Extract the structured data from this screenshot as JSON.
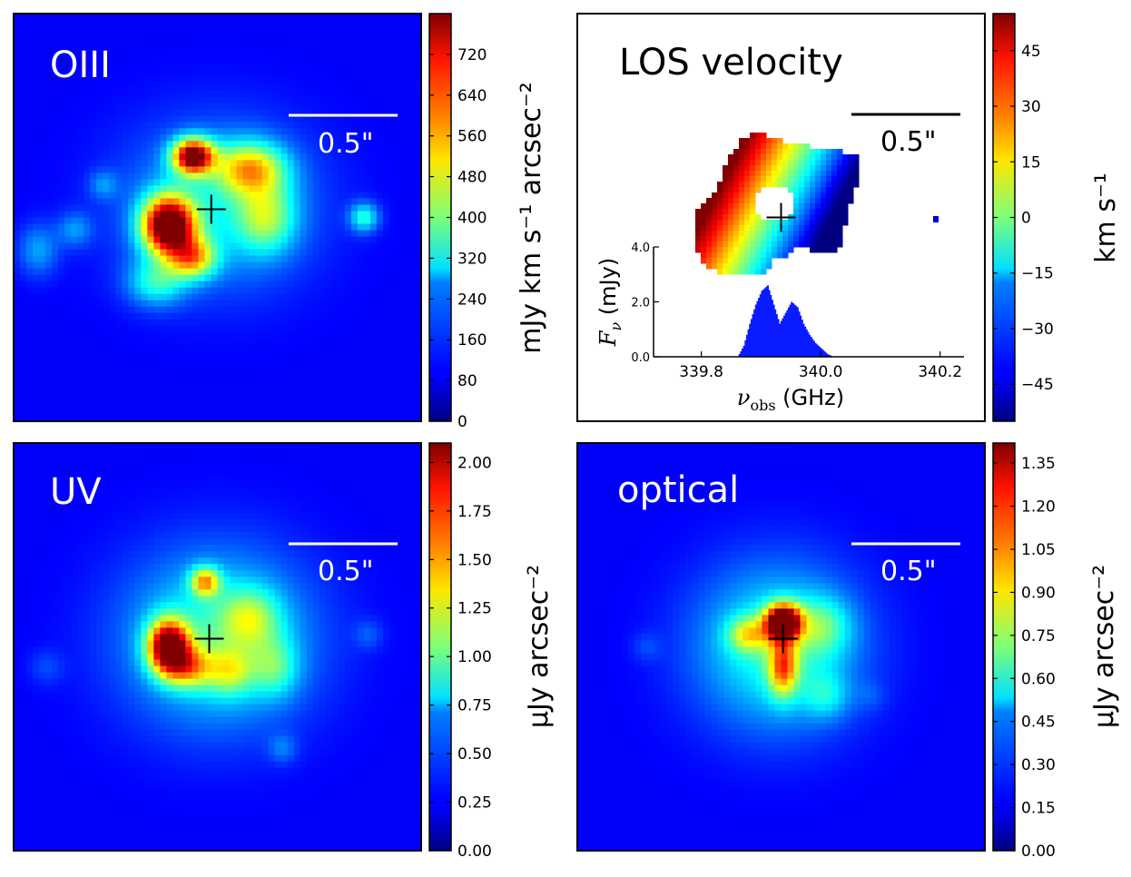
{
  "chart_data": [
    {
      "type": "heatmap",
      "label": "OIII",
      "scalebar": "0.5\"",
      "colorbar": {
        "label": "mJy km s⁻¹ arcsec⁻²",
        "range": [
          0,
          800
        ],
        "ticks": [
          "0",
          "80",
          "160",
          "240",
          "320",
          "400",
          "480",
          "560",
          "640",
          "720"
        ]
      },
      "blobs": [
        {
          "x": 0.5,
          "y": 0.47,
          "sx": 0.16,
          "sy": 0.14,
          "amp": 0.22
        },
        {
          "x": 0.38,
          "y": 0.52,
          "sx": 0.045,
          "sy": 0.05,
          "amp": 0.95
        },
        {
          "x": 0.44,
          "y": 0.6,
          "sx": 0.04,
          "sy": 0.035,
          "amp": 0.45
        },
        {
          "x": 0.44,
          "y": 0.35,
          "sx": 0.035,
          "sy": 0.03,
          "amp": 0.85
        },
        {
          "x": 0.58,
          "y": 0.38,
          "sx": 0.06,
          "sy": 0.045,
          "amp": 0.45
        },
        {
          "x": 0.62,
          "y": 0.5,
          "sx": 0.05,
          "sy": 0.06,
          "amp": 0.3
        },
        {
          "x": 0.35,
          "y": 0.66,
          "sx": 0.05,
          "sy": 0.04,
          "amp": 0.25
        },
        {
          "x": 0.86,
          "y": 0.5,
          "sx": 0.025,
          "sy": 0.025,
          "amp": 0.28
        },
        {
          "x": 0.06,
          "y": 0.58,
          "sx": 0.035,
          "sy": 0.045,
          "amp": 0.16
        },
        {
          "x": 0.15,
          "y": 0.53,
          "sx": 0.03,
          "sy": 0.03,
          "amp": 0.14
        },
        {
          "x": 0.22,
          "y": 0.42,
          "sx": 0.025,
          "sy": 0.025,
          "amp": 0.12
        }
      ],
      "cross": [
        0.485,
        0.48
      ]
    },
    {
      "type": "heatmap",
      "label": "LOS velocity",
      "scalebar": "0.5\"",
      "colorbar": {
        "label": "km s⁻¹",
        "range": [
          -55,
          55
        ],
        "ticks": [
          "−45",
          "−30",
          "−15",
          "0",
          "15",
          "30",
          "45"
        ],
        "tick_values": [
          -45,
          -30,
          -15,
          0,
          15,
          30,
          45
        ]
      },
      "cross": [
        0.5,
        0.5
      ],
      "inset": {
        "type": "area",
        "xlabel": "ν",
        "xlabel_sub": "obs",
        "xlabel_unit": " (GHz)",
        "ylabel": "F",
        "ylabel_sub": "ν",
        "ylabel_unit": " (mJy)",
        "xlim": [
          339.72,
          340.24
        ],
        "ylim": [
          0,
          4.0
        ],
        "xticks": [
          339.8,
          340.0,
          340.2
        ],
        "xtick_labels": [
          "339.8",
          "340.0",
          "340.2"
        ],
        "yticks": [
          0.0,
          2.0,
          4.0
        ],
        "ytick_labels": [
          "0.0",
          "2.0",
          "4.0"
        ],
        "x": [
          339.86,
          339.87,
          339.88,
          339.89,
          339.9,
          339.91,
          339.92,
          339.93,
          339.94,
          339.95,
          339.96,
          339.97,
          339.98,
          339.99,
          340.0,
          340.01,
          340.02
        ],
        "y": [
          0.0,
          0.4,
          1.2,
          1.9,
          2.4,
          2.6,
          1.9,
          1.2,
          1.6,
          2.0,
          1.8,
          1.2,
          0.8,
          0.5,
          0.3,
          0.1,
          0.0
        ]
      }
    },
    {
      "type": "heatmap",
      "label": "UV",
      "scalebar": "0.5\"",
      "colorbar": {
        "label": "μJy arcsec⁻²",
        "range": [
          0,
          2.1
        ],
        "ticks": [
          "0.00",
          "0.25",
          "0.50",
          "0.75",
          "1.00",
          "1.25",
          "1.50",
          "1.75",
          "2.00"
        ]
      },
      "blobs": [
        {
          "x": 0.5,
          "y": 0.48,
          "sx": 0.16,
          "sy": 0.15,
          "amp": 0.3
        },
        {
          "x": 0.38,
          "y": 0.5,
          "sx": 0.035,
          "sy": 0.045,
          "amp": 0.85
        },
        {
          "x": 0.43,
          "y": 0.55,
          "sx": 0.04,
          "sy": 0.035,
          "amp": 0.35
        },
        {
          "x": 0.47,
          "y": 0.34,
          "sx": 0.025,
          "sy": 0.025,
          "amp": 0.45
        },
        {
          "x": 0.58,
          "y": 0.43,
          "sx": 0.05,
          "sy": 0.05,
          "amp": 0.25
        },
        {
          "x": 0.53,
          "y": 0.56,
          "sx": 0.04,
          "sy": 0.04,
          "amp": 0.25
        },
        {
          "x": 0.64,
          "y": 0.55,
          "sx": 0.04,
          "sy": 0.05,
          "amp": 0.2
        },
        {
          "x": 0.66,
          "y": 0.75,
          "sx": 0.025,
          "sy": 0.025,
          "amp": 0.1
        },
        {
          "x": 0.87,
          "y": 0.47,
          "sx": 0.025,
          "sy": 0.025,
          "amp": 0.08
        },
        {
          "x": 0.08,
          "y": 0.55,
          "sx": 0.03,
          "sy": 0.03,
          "amp": 0.07
        }
      ],
      "cross": [
        0.48,
        0.48
      ]
    },
    {
      "type": "heatmap",
      "label": "optical",
      "scalebar": "0.5\"",
      "colorbar": {
        "label": "μJy arcsec⁻²",
        "range": [
          0,
          1.42
        ],
        "ticks": [
          "0.00",
          "0.15",
          "0.30",
          "0.45",
          "0.60",
          "0.75",
          "0.90",
          "1.05",
          "1.20",
          "1.35"
        ]
      },
      "blobs": [
        {
          "x": 0.49,
          "y": 0.5,
          "sx": 0.14,
          "sy": 0.14,
          "amp": 0.3
        },
        {
          "x": 0.505,
          "y": 0.44,
          "sx": 0.03,
          "sy": 0.03,
          "amp": 0.95
        },
        {
          "x": 0.505,
          "y": 0.55,
          "sx": 0.025,
          "sy": 0.05,
          "amp": 0.45
        },
        {
          "x": 0.42,
          "y": 0.47,
          "sx": 0.035,
          "sy": 0.03,
          "amp": 0.3
        },
        {
          "x": 0.6,
          "y": 0.45,
          "sx": 0.05,
          "sy": 0.05,
          "amp": 0.2
        },
        {
          "x": 0.61,
          "y": 0.62,
          "sx": 0.04,
          "sy": 0.04,
          "amp": 0.15
        },
        {
          "x": 0.17,
          "y": 0.5,
          "sx": 0.025,
          "sy": 0.025,
          "amp": 0.06
        },
        {
          "x": 0.72,
          "y": 0.62,
          "sx": 0.025,
          "sy": 0.025,
          "amp": 0.05
        }
      ],
      "cross": [
        0.505,
        0.48
      ]
    }
  ]
}
